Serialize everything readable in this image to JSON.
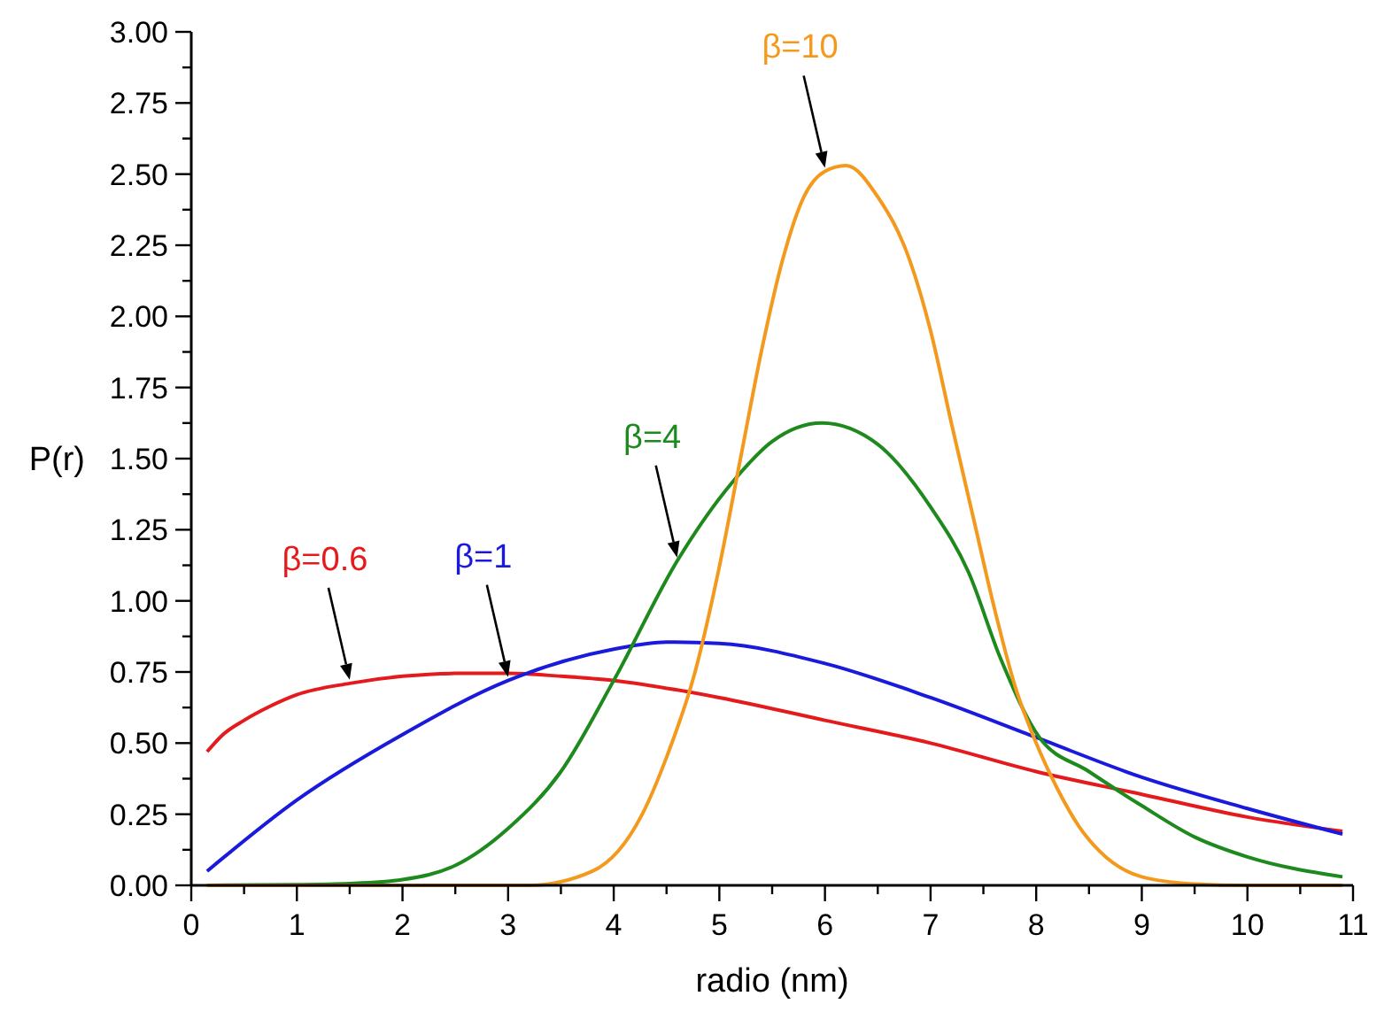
{
  "chart_data": {
    "type": "line",
    "xlabel": "radio (nm)",
    "ylabel": "P(r)",
    "xlim": [
      0,
      11
    ],
    "ylim": [
      0,
      3
    ],
    "xticks": [
      0,
      {
        "value": 0.5,
        "label": null
      },
      1,
      {
        "value": 1.5,
        "label": null
      },
      2,
      {
        "value": 2.5,
        "label": null
      },
      3,
      {
        "value": 3.5,
        "label": null
      },
      4,
      {
        "value": 4.5,
        "label": null
      },
      5,
      {
        "value": 5.5,
        "label": null
      },
      6,
      {
        "value": 6.5,
        "label": null
      },
      7,
      {
        "value": 7.5,
        "label": null
      },
      8,
      {
        "value": 8.5,
        "label": null
      },
      9,
      {
        "value": 9.5,
        "label": null
      },
      10,
      {
        "value": 10.5,
        "label": null
      },
      11
    ],
    "yticks": [
      {
        "value": 0,
        "label": "0.00"
      },
      {
        "value": 0.125,
        "label": null
      },
      {
        "value": 0.25,
        "label": "0.25"
      },
      {
        "value": 0.375,
        "label": null
      },
      {
        "value": 0.5,
        "label": "0.50"
      },
      {
        "value": 0.625,
        "label": null
      },
      {
        "value": 0.75,
        "label": "0.75"
      },
      {
        "value": 0.875,
        "label": null
      },
      {
        "value": 1,
        "label": "1.00"
      },
      {
        "value": 1.125,
        "label": null
      },
      {
        "value": 1.25,
        "label": "1.25"
      },
      {
        "value": 1.375,
        "label": null
      },
      {
        "value": 1.5,
        "label": "1.50"
      },
      {
        "value": 1.625,
        "label": null
      },
      {
        "value": 1.75,
        "label": "1.75"
      },
      {
        "value": 1.875,
        "label": null
      },
      {
        "value": 2,
        "label": "2.00"
      },
      {
        "value": 2.125,
        "label": null
      },
      {
        "value": 2.25,
        "label": "2.25"
      },
      {
        "value": 2.375,
        "label": null
      },
      {
        "value": 2.5,
        "label": "2.50"
      },
      {
        "value": 2.625,
        "label": null
      },
      {
        "value": 2.75,
        "label": "2.75"
      },
      {
        "value": 2.875,
        "label": null
      },
      {
        "value": 3,
        "label": "3.00"
      }
    ],
    "grid": false,
    "marker": "none",
    "line_style": "solid",
    "series": [
      {
        "name": "β=0.6",
        "color": "#e41a1c",
        "x": [
          0.15,
          0.3,
          0.5,
          0.75,
          1,
          1.5,
          2,
          2.5,
          3,
          3.5,
          4,
          5,
          6,
          7,
          8,
          9,
          10,
          10.9
        ],
        "values": [
          0.47,
          0.53,
          0.58,
          0.63,
          0.67,
          0.71,
          0.735,
          0.745,
          0.745,
          0.735,
          0.72,
          0.66,
          0.58,
          0.5,
          0.4,
          0.32,
          0.24,
          0.19
        ]
      },
      {
        "name": "β=1",
        "color": "#1a1adc",
        "x": [
          0.15,
          1,
          2,
          3,
          4,
          4.5,
          5,
          6,
          7,
          8,
          9,
          10,
          10.9
        ],
        "values": [
          0.05,
          0.3,
          0.53,
          0.72,
          0.83,
          0.855,
          0.85,
          0.78,
          0.66,
          0.52,
          0.38,
          0.27,
          0.18
        ]
      },
      {
        "name": "β=4",
        "color": "#1e8a1e",
        "x": [
          0.15,
          1,
          1.5,
          2,
          2.5,
          3,
          3.5,
          4,
          4.6,
          5.13,
          5.5,
          5.97,
          6.5,
          7,
          7.36,
          7.66,
          8.03,
          8.5,
          9,
          9.5,
          10,
          10.9
        ],
        "values": [
          0,
          0.002,
          0.006,
          0.02,
          0.07,
          0.2,
          0.4,
          0.72,
          1.14,
          1.42,
          1.56,
          1.625,
          1.55,
          1.33,
          1.1,
          0.8,
          0.52,
          0.4,
          0.28,
          0.17,
          0.1,
          0.03
        ]
      },
      {
        "name": "β=10",
        "color": "#f39a1e",
        "x": [
          0.15,
          3.2,
          3.8,
          4.27,
          4.5,
          4.77,
          5,
          5.2,
          5.4,
          5.6,
          5.8,
          6,
          6.2,
          6.5,
          6.8,
          7,
          7.2,
          7.4,
          7.6,
          7.8,
          8,
          8.2,
          8.4,
          8.6,
          9,
          9.5,
          10,
          10.9
        ],
        "values": [
          0,
          0,
          0.05,
          0.25,
          0.45,
          0.75,
          1.12,
          1.5,
          1.88,
          2.2,
          2.42,
          2.51,
          2.53,
          2.42,
          2.2,
          1.95,
          1.62,
          1.3,
          0.98,
          0.7,
          0.5,
          0.34,
          0.21,
          0.12,
          0.03,
          0.005,
          0,
          0
        ]
      }
    ]
  }
}
